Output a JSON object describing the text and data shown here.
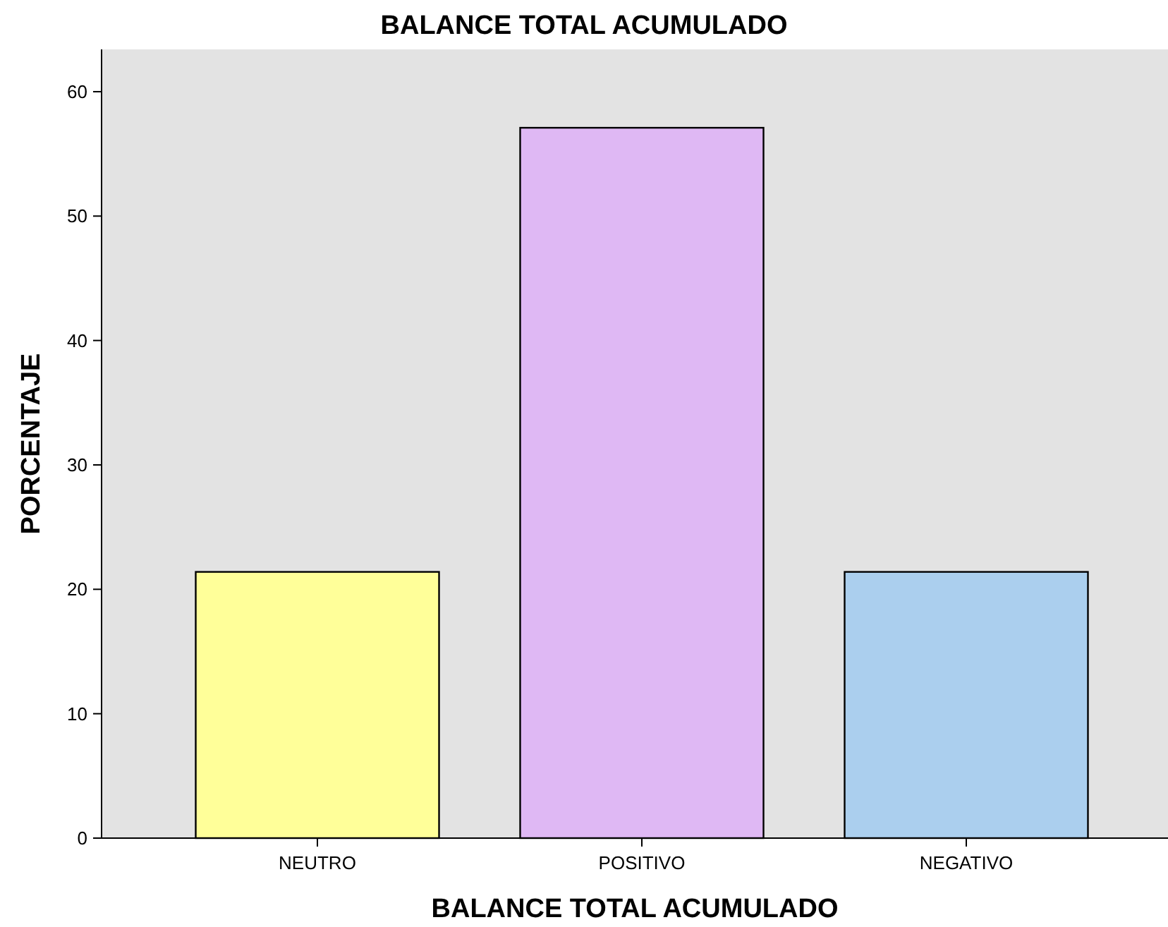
{
  "chart_data": {
    "type": "bar",
    "title": "BALANCE TOTAL ACUMULADO",
    "xlabel": "BALANCE TOTAL ACUMULADO",
    "ylabel": "PORCENTAJE",
    "categories": [
      "NEUTRO",
      "POSITIVO",
      "NEGATIVO"
    ],
    "values": [
      21.4,
      57.1,
      21.4
    ],
    "colors": [
      "#ffff99",
      "#dfb8f4",
      "#abcfee"
    ],
    "ylim": [
      0,
      63.4
    ],
    "yticks": [
      0,
      10,
      20,
      30,
      40,
      50,
      60
    ],
    "grid": false
  }
}
